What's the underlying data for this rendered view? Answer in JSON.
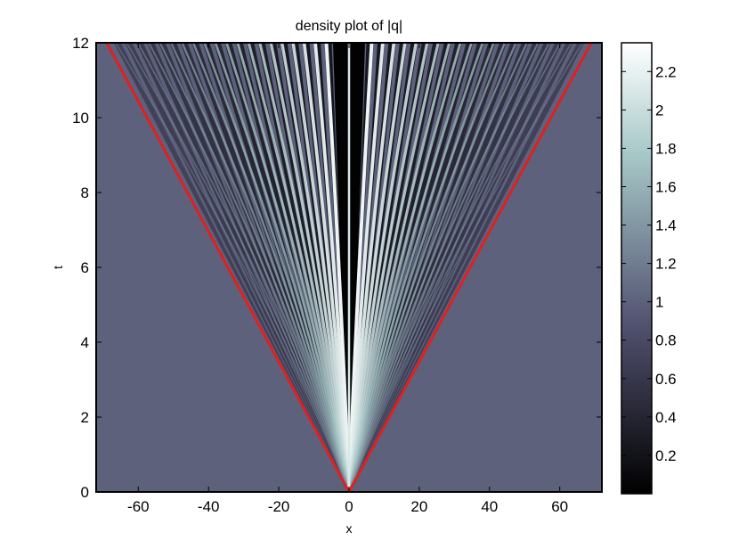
{
  "chart_data": {
    "type": "heatmap",
    "title": "density plot of |q|",
    "xlabel": "x",
    "ylabel": "t",
    "xlim": [
      -72,
      72
    ],
    "ylim": [
      0,
      12
    ],
    "xticks": [
      -60,
      -40,
      -20,
      0,
      20,
      40,
      60
    ],
    "yticks": [
      0,
      2,
      4,
      6,
      8,
      10,
      12
    ],
    "colorbar": {
      "range": [
        0,
        2.35
      ],
      "ticks": [
        0.2,
        0.4,
        0.6,
        0.8,
        1,
        1.2,
        1.4,
        1.6,
        1.8,
        2,
        2.2
      ],
      "colormap": "bone"
    },
    "background_value": 1,
    "overlay_lines": [
      {
        "color": "#e02020",
        "points": [
          [
            -69,
            12
          ],
          [
            0,
            0
          ],
          [
            69,
            12
          ]
        ]
      }
    ]
  }
}
